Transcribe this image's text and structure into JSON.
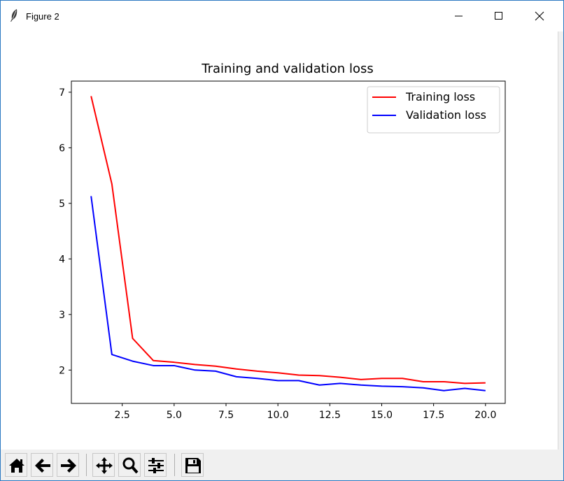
{
  "window": {
    "title": "Figure 2",
    "app_icon": "feather-icon",
    "controls": [
      "minimize-icon",
      "maximize-icon",
      "close-icon"
    ]
  },
  "toolbar": {
    "buttons": [
      "home-icon",
      "back-arrow-icon",
      "forward-arrow-icon",
      "pan-icon",
      "zoom-icon",
      "configure-subplots-icon",
      "save-icon"
    ]
  },
  "chart_data": {
    "type": "line",
    "title": "Training and validation loss",
    "xlabel": "",
    "ylabel": "",
    "x": [
      1,
      2,
      3,
      4,
      5,
      6,
      7,
      8,
      9,
      10,
      11,
      12,
      13,
      14,
      15,
      16,
      17,
      18,
      19,
      20
    ],
    "xlim": [
      0.05,
      20.95
    ],
    "ylim": [
      1.4,
      7.2
    ],
    "xticks": [
      2.5,
      5.0,
      7.5,
      10.0,
      12.5,
      15.0,
      17.5,
      20.0
    ],
    "xtick_labels": [
      "2.5",
      "5.0",
      "7.5",
      "10.0",
      "12.5",
      "15.0",
      "17.5",
      "20.0"
    ],
    "yticks": [
      2,
      3,
      4,
      5,
      6,
      7
    ],
    "ytick_labels": [
      "2",
      "3",
      "4",
      "5",
      "6",
      "7"
    ],
    "grid": false,
    "legend_position": "top-right",
    "series": [
      {
        "name": "Training loss",
        "color": "#ff0000",
        "values": [
          6.93,
          5.35,
          2.57,
          2.17,
          2.14,
          2.1,
          2.07,
          2.02,
          1.98,
          1.95,
          1.91,
          1.9,
          1.87,
          1.83,
          1.85,
          1.85,
          1.79,
          1.79,
          1.76,
          1.77
        ]
      },
      {
        "name": "Validation loss",
        "color": "#0000ff",
        "values": [
          5.13,
          2.28,
          2.16,
          2.08,
          2.08,
          2.0,
          1.98,
          1.88,
          1.85,
          1.81,
          1.81,
          1.73,
          1.76,
          1.73,
          1.71,
          1.7,
          1.68,
          1.63,
          1.67,
          1.63
        ]
      }
    ]
  }
}
